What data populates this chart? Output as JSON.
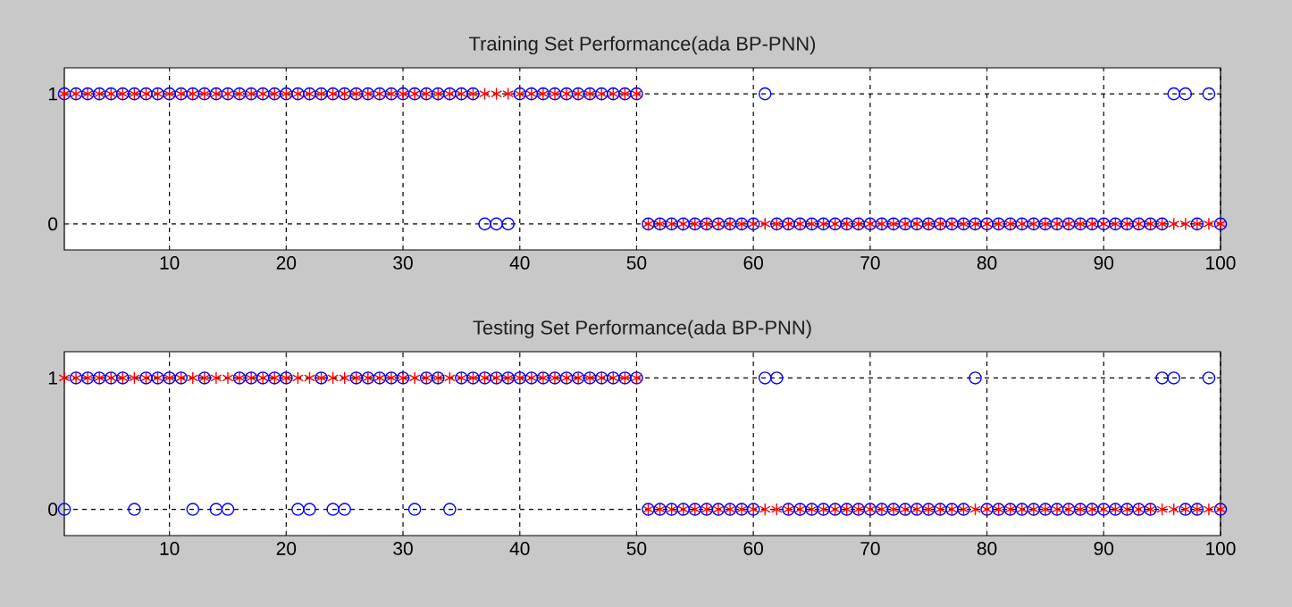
{
  "chart_data": [
    {
      "type": "scatter",
      "title": "Training Set Performance(ada BP-PNN)",
      "xlim": [
        1,
        100
      ],
      "ylim": [
        -0.2,
        1.2
      ],
      "xticks": [
        10,
        20,
        30,
        40,
        50,
        60,
        70,
        80,
        90,
        100
      ],
      "yticks": [
        0,
        1
      ],
      "grid": true,
      "x": [
        1,
        2,
        3,
        4,
        5,
        6,
        7,
        8,
        9,
        10,
        11,
        12,
        13,
        14,
        15,
        16,
        17,
        18,
        19,
        20,
        21,
        22,
        23,
        24,
        25,
        26,
        27,
        28,
        29,
        30,
        31,
        32,
        33,
        34,
        35,
        36,
        37,
        38,
        39,
        40,
        41,
        42,
        43,
        44,
        45,
        46,
        47,
        48,
        49,
        50,
        51,
        52,
        53,
        54,
        55,
        56,
        57,
        58,
        59,
        60,
        61,
        62,
        63,
        64,
        65,
        66,
        67,
        68,
        69,
        70,
        71,
        72,
        73,
        74,
        75,
        76,
        77,
        78,
        79,
        80,
        81,
        82,
        83,
        84,
        85,
        86,
        87,
        88,
        89,
        90,
        91,
        92,
        93,
        94,
        95,
        96,
        97,
        98,
        99,
        100
      ],
      "series": [
        {
          "color": "#ff0000",
          "marker": "cross",
          "values": [
            1,
            1,
            1,
            1,
            1,
            1,
            1,
            1,
            1,
            1,
            1,
            1,
            1,
            1,
            1,
            1,
            1,
            1,
            1,
            1,
            1,
            1,
            1,
            1,
            1,
            1,
            1,
            1,
            1,
            1,
            1,
            1,
            1,
            1,
            1,
            1,
            1,
            1,
            1,
            1,
            1,
            1,
            1,
            1,
            1,
            1,
            1,
            1,
            1,
            1,
            0,
            0,
            0,
            0,
            0,
            0,
            0,
            0,
            0,
            0,
            0,
            0,
            0,
            0,
            0,
            0,
            0,
            0,
            0,
            0,
            0,
            0,
            0,
            0,
            0,
            0,
            0,
            0,
            0,
            0,
            0,
            0,
            0,
            0,
            0,
            0,
            0,
            0,
            0,
            0,
            0,
            0,
            0,
            0,
            0,
            0,
            0,
            0,
            0,
            0
          ]
        },
        {
          "color": "#0000ff",
          "marker": "circle",
          "values": [
            1,
            1,
            1,
            1,
            1,
            1,
            1,
            1,
            1,
            1,
            1,
            1,
            1,
            1,
            1,
            1,
            1,
            1,
            1,
            1,
            1,
            1,
            1,
            1,
            1,
            1,
            1,
            1,
            1,
            1,
            1,
            1,
            1,
            1,
            1,
            1,
            0,
            0,
            0,
            1,
            1,
            1,
            1,
            1,
            1,
            1,
            1,
            1,
            1,
            1,
            0,
            0,
            0,
            0,
            0,
            0,
            0,
            0,
            0,
            0,
            1,
            0,
            0,
            0,
            0,
            0,
            0,
            0,
            0,
            0,
            0,
            0,
            0,
            0,
            0,
            0,
            0,
            0,
            0,
            0,
            0,
            0,
            0,
            0,
            0,
            0,
            0,
            0,
            0,
            0,
            0,
            0,
            0,
            0,
            0,
            1,
            1,
            0,
            1,
            0
          ]
        }
      ]
    },
    {
      "type": "scatter",
      "title": "Testing Set Performance(ada BP-PNN)",
      "xlim": [
        1,
        100
      ],
      "ylim": [
        -0.2,
        1.2
      ],
      "xticks": [
        10,
        20,
        30,
        40,
        50,
        60,
        70,
        80,
        90,
        100
      ],
      "yticks": [
        0,
        1
      ],
      "grid": true,
      "x": [
        1,
        2,
        3,
        4,
        5,
        6,
        7,
        8,
        9,
        10,
        11,
        12,
        13,
        14,
        15,
        16,
        17,
        18,
        19,
        20,
        21,
        22,
        23,
        24,
        25,
        26,
        27,
        28,
        29,
        30,
        31,
        32,
        33,
        34,
        35,
        36,
        37,
        38,
        39,
        40,
        41,
        42,
        43,
        44,
        45,
        46,
        47,
        48,
        49,
        50,
        51,
        52,
        53,
        54,
        55,
        56,
        57,
        58,
        59,
        60,
        61,
        62,
        63,
        64,
        65,
        66,
        67,
        68,
        69,
        70,
        71,
        72,
        73,
        74,
        75,
        76,
        77,
        78,
        79,
        80,
        81,
        82,
        83,
        84,
        85,
        86,
        87,
        88,
        89,
        90,
        91,
        92,
        93,
        94,
        95,
        96,
        97,
        98,
        99,
        100
      ],
      "series": [
        {
          "color": "#ff0000",
          "marker": "cross",
          "values": [
            1,
            1,
            1,
            1,
            1,
            1,
            1,
            1,
            1,
            1,
            1,
            1,
            1,
            1,
            1,
            1,
            1,
            1,
            1,
            1,
            1,
            1,
            1,
            1,
            1,
            1,
            1,
            1,
            1,
            1,
            1,
            1,
            1,
            1,
            1,
            1,
            1,
            1,
            1,
            1,
            1,
            1,
            1,
            1,
            1,
            1,
            1,
            1,
            1,
            1,
            0,
            0,
            0,
            0,
            0,
            0,
            0,
            0,
            0,
            0,
            0,
            0,
            0,
            0,
            0,
            0,
            0,
            0,
            0,
            0,
            0,
            0,
            0,
            0,
            0,
            0,
            0,
            0,
            0,
            0,
            0,
            0,
            0,
            0,
            0,
            0,
            0,
            0,
            0,
            0,
            0,
            0,
            0,
            0,
            0,
            0,
            0,
            0,
            0,
            0
          ]
        },
        {
          "color": "#0000ff",
          "marker": "circle",
          "values": [
            0,
            1,
            1,
            1,
            1,
            1,
            0,
            1,
            1,
            1,
            1,
            0,
            1,
            0,
            0,
            1,
            1,
            1,
            1,
            1,
            0,
            0,
            1,
            0,
            0,
            1,
            1,
            1,
            1,
            1,
            0,
            1,
            1,
            0,
            1,
            1,
            1,
            1,
            1,
            1,
            1,
            1,
            1,
            1,
            1,
            1,
            1,
            1,
            1,
            1,
            0,
            0,
            0,
            0,
            0,
            0,
            0,
            0,
            0,
            0,
            1,
            1,
            0,
            0,
            0,
            0,
            0,
            0,
            0,
            0,
            0,
            0,
            0,
            0,
            0,
            0,
            0,
            0,
            1,
            0,
            0,
            0,
            0,
            0,
            0,
            0,
            0,
            0,
            0,
            0,
            0,
            0,
            0,
            0,
            1,
            1,
            0,
            0,
            1,
            0
          ]
        }
      ]
    }
  ]
}
